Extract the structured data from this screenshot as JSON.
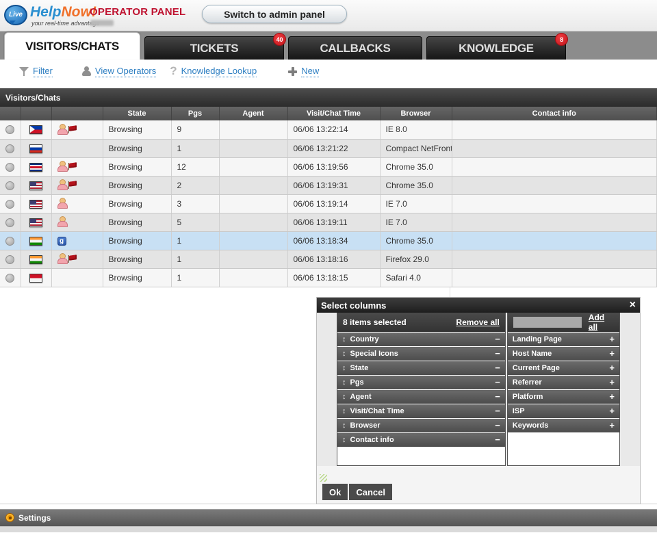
{
  "header": {
    "logo": {
      "bubble": "Live",
      "help": "Help",
      "now": "Now!",
      "tagline": "your real-time advantage"
    },
    "panel_title": "OPERATOR PANEL",
    "switch_button": "Switch to admin panel"
  },
  "tabs": [
    {
      "label": "VISITORS/CHATS",
      "badge": ""
    },
    {
      "label": "TICKETS",
      "badge": "40"
    },
    {
      "label": "CALLBACKS",
      "badge": ""
    },
    {
      "label": "KNOWLEDGE",
      "badge": "8"
    }
  ],
  "toolbar": {
    "filter": "Filter",
    "view_operators": "View Operators",
    "knowledge_lookup": "Knowledge Lookup",
    "new": "New"
  },
  "table": {
    "title": "Visitors/Chats",
    "columns": {
      "state": "State",
      "pgs": "Pgs",
      "agent": "Agent",
      "time": "Visit/Chat Time",
      "browser": "Browser",
      "contact": "Contact info"
    },
    "rows": [
      {
        "country": "ph",
        "icons": "person flag",
        "state": "Browsing",
        "pgs": "9",
        "agent": "",
        "time": "06/06 13:22:14",
        "browser": "IE 8.0",
        "contact": "",
        "selected": "false"
      },
      {
        "country": "ru",
        "icons": "",
        "state": "Browsing",
        "pgs": "1",
        "agent": "",
        "time": "06/06 13:21:22",
        "browser": "Compact NetFront 3",
        "contact": "",
        "selected": "false"
      },
      {
        "country": "cr",
        "icons": "person flag",
        "state": "Browsing",
        "pgs": "12",
        "agent": "",
        "time": "06/06 13:19:56",
        "browser": "Chrome 35.0",
        "contact": "",
        "selected": "false"
      },
      {
        "country": "us",
        "icons": "person flag",
        "state": "Browsing",
        "pgs": "2",
        "agent": "",
        "time": "06/06 13:19:31",
        "browser": "Chrome 35.0",
        "contact": "",
        "selected": "false"
      },
      {
        "country": "us",
        "icons": "person",
        "state": "Browsing",
        "pgs": "3",
        "agent": "",
        "time": "06/06 13:19:14",
        "browser": "IE 7.0",
        "contact": "",
        "selected": "false"
      },
      {
        "country": "us",
        "icons": "person",
        "state": "Browsing",
        "pgs": "5",
        "agent": "",
        "time": "06/06 13:19:11",
        "browser": "IE 7.0",
        "contact": "",
        "selected": "false"
      },
      {
        "country": "in",
        "icons": "google",
        "state": "Browsing",
        "pgs": "1",
        "agent": "",
        "time": "06/06 13:18:34",
        "browser": "Chrome 35.0",
        "contact": "",
        "selected": "true"
      },
      {
        "country": "in",
        "icons": "person flag",
        "state": "Browsing",
        "pgs": "1",
        "agent": "",
        "time": "06/06 13:18:16",
        "browser": "Firefox 29.0",
        "contact": "",
        "selected": "false"
      },
      {
        "country": "id",
        "icons": "",
        "state": "Browsing",
        "pgs": "1",
        "agent": "",
        "time": "06/06 13:18:15",
        "browser": "Safari 4.0",
        "contact": "",
        "selected": "false"
      }
    ]
  },
  "dialog": {
    "title": "Select columns",
    "close": "×",
    "selected_count": "8 items selected",
    "remove_all": "Remove all",
    "add_all": "Add all",
    "search_value": "",
    "drag_glyph": "↕",
    "minus_glyph": "−",
    "plus_glyph": "+",
    "left_items": [
      "Country",
      "Special Icons",
      "State",
      "Pgs",
      "Agent",
      "Visit/Chat Time",
      "Browser",
      "Contact info"
    ],
    "right_items": [
      "Landing Page",
      "Host Name",
      "Current Page",
      "Referrer",
      "Platform",
      "ISP",
      "Keywords"
    ],
    "ok": "Ok",
    "cancel": "Cancel"
  },
  "footer": {
    "settings": "Settings"
  },
  "colors": {
    "badge_red": "#d42027",
    "link_blue": "#2e7fc2",
    "state_green": "#3da048",
    "row_highlight": "#c8e0f4",
    "brand_blue": "#2b8fd0",
    "brand_orange": "#f0702a"
  }
}
